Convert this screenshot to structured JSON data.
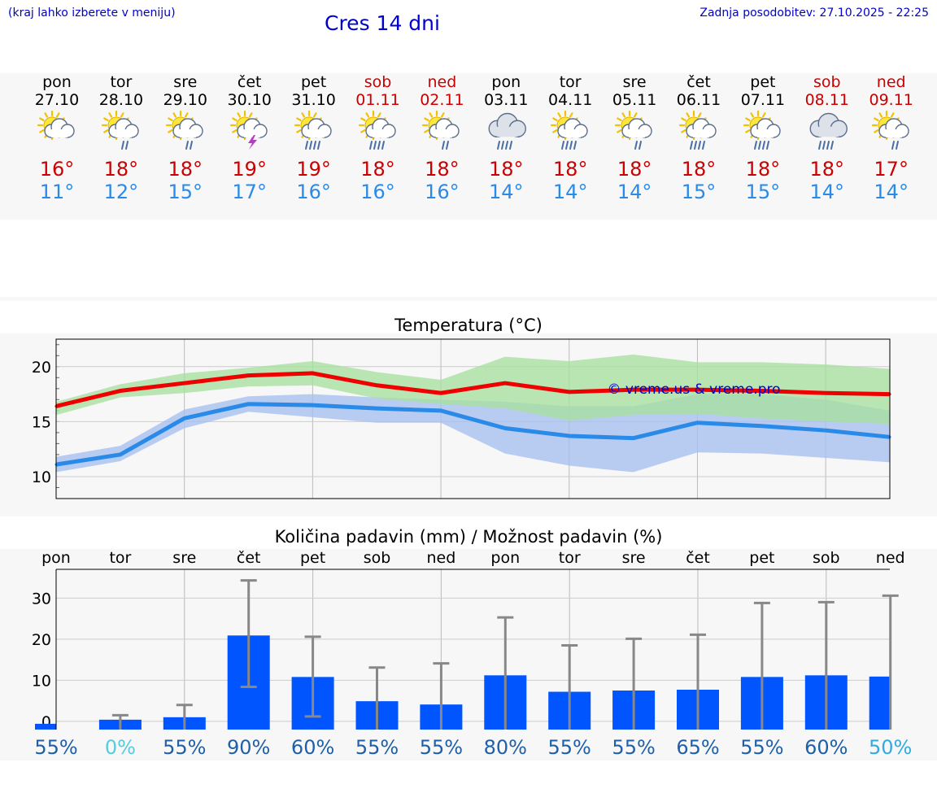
{
  "header": {
    "hint": "(kraj lahko izberete v meniju)",
    "title": "Cres 14 dni",
    "updated": "Zadnja posodobitev: 27.10.2025 - 22:25"
  },
  "colors": {
    "hot": "#cc0000",
    "cold": "#2a8ae8",
    "link": "#0000cc",
    "bar": "#0055ff"
  },
  "forecast": [
    {
      "day": "pon",
      "date": "27.10",
      "icon": "sun-cloud-icon",
      "tmax": "16°",
      "tmin": "11°",
      "weekend": false
    },
    {
      "day": "tor",
      "date": "28.10",
      "icon": "sun-cloud-rain-icon",
      "tmax": "18°",
      "tmin": "12°",
      "weekend": false
    },
    {
      "day": "sre",
      "date": "29.10",
      "icon": "sun-cloud-rain-icon",
      "tmax": "18°",
      "tmin": "15°",
      "weekend": false
    },
    {
      "day": "čet",
      "date": "30.10",
      "icon": "sun-storm-icon",
      "tmax": "19°",
      "tmin": "17°",
      "weekend": false
    },
    {
      "day": "pet",
      "date": "31.10",
      "icon": "sun-heavy-rain-icon",
      "tmax": "19°",
      "tmin": "16°",
      "weekend": false
    },
    {
      "day": "sob",
      "date": "01.11",
      "icon": "sun-heavy-rain-icon",
      "tmax": "18°",
      "tmin": "16°",
      "weekend": true
    },
    {
      "day": "ned",
      "date": "02.11",
      "icon": "sun-cloud-rain-icon",
      "tmax": "18°",
      "tmin": "16°",
      "weekend": true
    },
    {
      "day": "pon",
      "date": "03.11",
      "icon": "cloud-heavy-rain-icon",
      "tmax": "18°",
      "tmin": "14°",
      "weekend": false
    },
    {
      "day": "tor",
      "date": "04.11",
      "icon": "sun-heavy-rain-icon",
      "tmax": "18°",
      "tmin": "14°",
      "weekend": false
    },
    {
      "day": "sre",
      "date": "05.11",
      "icon": "sun-cloud-rain-icon",
      "tmax": "18°",
      "tmin": "14°",
      "weekend": false
    },
    {
      "day": "čet",
      "date": "06.11",
      "icon": "sun-heavy-rain-icon",
      "tmax": "18°",
      "tmin": "15°",
      "weekend": false
    },
    {
      "day": "pet",
      "date": "07.11",
      "icon": "sun-heavy-rain-icon",
      "tmax": "18°",
      "tmin": "15°",
      "weekend": false
    },
    {
      "day": "sob",
      "date": "08.11",
      "icon": "cloud-heavy-rain-icon",
      "tmax": "18°",
      "tmin": "14°",
      "weekend": true
    },
    {
      "day": "ned",
      "date": "09.11",
      "icon": "sun-cloud-rain-icon",
      "tmax": "17°",
      "tmin": "14°",
      "weekend": true
    }
  ],
  "chart_data": [
    {
      "type": "line",
      "title": "Temperatura (°C)",
      "watermark": "© vreme.us & vreme.pro",
      "ylim": [
        8,
        22.5
      ],
      "yticks": [
        10,
        15,
        20
      ],
      "x": [
        0,
        1,
        2,
        3,
        4,
        5,
        6,
        7,
        8,
        9,
        10,
        11,
        12,
        13
      ],
      "series": [
        {
          "name": "max",
          "color": "#ee0000",
          "values": [
            16.4,
            17.8,
            18.5,
            19.2,
            19.4,
            18.3,
            17.6,
            18.5,
            17.7,
            17.9,
            17.9,
            17.8,
            17.6,
            17.5
          ]
        },
        {
          "name": "min",
          "color": "#2a8ae8",
          "values": [
            11.1,
            12.0,
            15.3,
            16.6,
            16.5,
            16.2,
            16.0,
            14.4,
            13.7,
            13.5,
            14.9,
            14.6,
            14.2,
            13.6
          ]
        }
      ],
      "bands": [
        {
          "name": "max-range",
          "color": "#a8e0a0",
          "upper": [
            16.8,
            18.4,
            19.4,
            19.9,
            20.5,
            19.5,
            18.8,
            20.9,
            20.5,
            21.1,
            20.4,
            20.4,
            20.2,
            19.8
          ],
          "lower": [
            15.6,
            17.2,
            17.6,
            18.2,
            18.3,
            17.1,
            16.6,
            16.2,
            15.1,
            15.6,
            15.7,
            15.3,
            15.0,
            14.8
          ]
        },
        {
          "name": "min-range",
          "color": "#a8c0f0",
          "upper": [
            11.8,
            12.8,
            16.1,
            17.3,
            17.5,
            17.2,
            17.0,
            16.8,
            16.4,
            16.4,
            17.5,
            17.5,
            17.0,
            16.0
          ],
          "lower": [
            10.4,
            11.4,
            14.4,
            15.9,
            15.4,
            14.9,
            14.9,
            12.1,
            11.0,
            10.4,
            12.2,
            12.1,
            11.7,
            11.3
          ]
        }
      ]
    },
    {
      "type": "bar",
      "title": "Količina padavin (mm) / Možnost padavin (%)",
      "categories": [
        "pon",
        "tor",
        "sre",
        "čet",
        "pet",
        "sob",
        "ned",
        "pon",
        "tor",
        "sre",
        "čet",
        "pet",
        "sob",
        "ned"
      ],
      "ylim": [
        -2,
        37
      ],
      "yticks": [
        0,
        10,
        20,
        30
      ],
      "values": [
        0,
        1.0,
        1.6,
        21.5,
        11.4,
        5.5,
        4.7,
        11.8,
        7.8,
        8.1,
        8.3,
        11.4,
        11.8,
        11.5
      ],
      "err_low": [
        0,
        0,
        0,
        8.4,
        1.2,
        0,
        0,
        0,
        0,
        0,
        0,
        0,
        0,
        0
      ],
      "err_high": [
        0,
        1.5,
        4.0,
        34.3,
        20.6,
        13.1,
        14.1,
        25.3,
        18.5,
        20.1,
        21.1,
        28.8,
        29.0,
        30.6
      ],
      "chance": [
        "55%",
        "0%",
        "55%",
        "90%",
        "60%",
        "55%",
        "55%",
        "80%",
        "55%",
        "55%",
        "65%",
        "55%",
        "60%",
        "50%"
      ],
      "chance_colors": [
        "#1f5fa8",
        "#55ccdd",
        "#1f5fa8",
        "#1f5fa8",
        "#1f5fa8",
        "#1f5fa8",
        "#1f5fa8",
        "#1f5fa8",
        "#1f5fa8",
        "#1f5fa8",
        "#1f5fa8",
        "#1f5fa8",
        "#1f5fa8",
        "#33aadd"
      ]
    }
  ]
}
